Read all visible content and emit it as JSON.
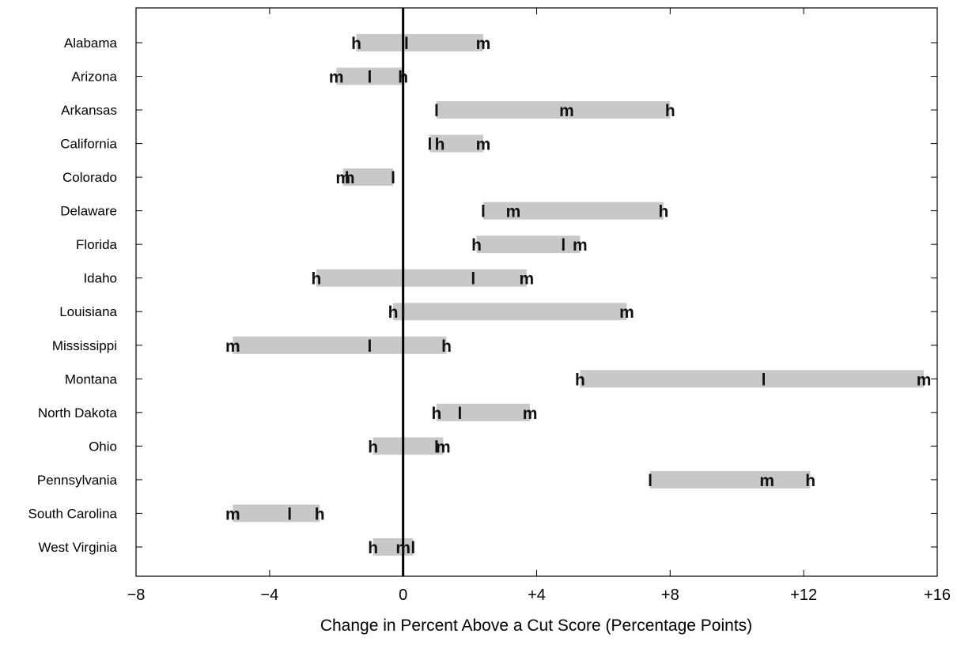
{
  "chart_data": {
    "type": "range-dot",
    "title": "",
    "xlabel": "Change in Percent Above a Cut Score (Percentage Points)",
    "ylabel": "",
    "xlim": [
      -8,
      16
    ],
    "xticks": [
      -8,
      -4,
      0,
      4,
      8,
      12,
      16
    ],
    "xtick_labels": [
      "−8",
      "−4",
      "0",
      "+4",
      "+8",
      "+12",
      "+16"
    ],
    "reference_line": 0,
    "marker_series": [
      "h",
      "l",
      "m"
    ],
    "bar_color": "#c8c8c8",
    "categories": [
      "Alabama",
      "Arizona",
      "Arkansas",
      "California",
      "Colorado",
      "Delaware",
      "Florida",
      "Idaho",
      "Louisiana",
      "Mississippi",
      "Montana",
      "North Dakota",
      "Ohio",
      "Pennsylvania",
      "South Carolina",
      "West Virginia"
    ],
    "values": {
      "h": [
        -1.4,
        0.0,
        8.0,
        1.1,
        -1.6,
        7.8,
        2.2,
        -2.6,
        -0.3,
        1.3,
        5.3,
        1.0,
        -0.9,
        12.2,
        -2.5,
        -0.9
      ],
      "l": [
        0.1,
        -1.0,
        1.0,
        0.8,
        -0.3,
        2.4,
        4.8,
        2.1,
        0.0,
        -1.0,
        10.8,
        1.7,
        1.0,
        7.4,
        -3.4,
        0.3
      ],
      "m": [
        2.4,
        -2.0,
        4.9,
        2.4,
        -1.8,
        3.3,
        5.3,
        3.7,
        6.7,
        -5.1,
        15.6,
        3.8,
        1.2,
        10.9,
        -5.1,
        0.0
      ]
    }
  }
}
